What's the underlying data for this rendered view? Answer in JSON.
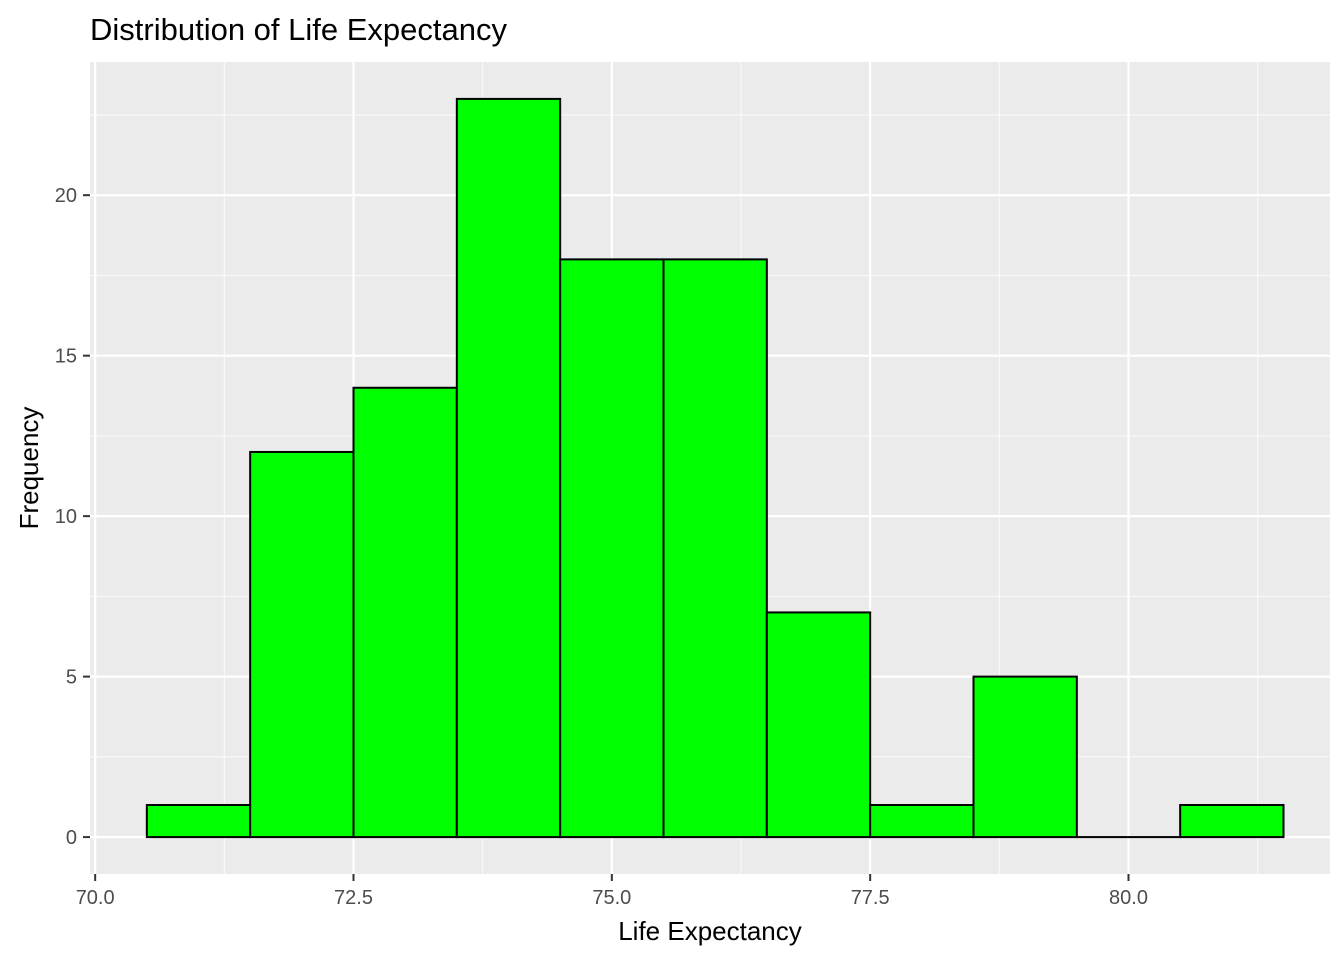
{
  "chart_data": {
    "type": "bar",
    "title": "Distribution of Life Expectancy",
    "xlabel": "Life Expectancy",
    "ylabel": "Frequency",
    "xlim": [
      69.95,
      81.95
    ],
    "ylim": [
      -1.15,
      24.15
    ],
    "x_ticks": [
      70.0,
      72.5,
      75.0,
      77.5,
      80.0
    ],
    "x_tick_labels": [
      "70.0",
      "72.5",
      "75.0",
      "77.5",
      "80.0"
    ],
    "y_ticks": [
      0,
      5,
      10,
      15,
      20
    ],
    "y_tick_labels": [
      "0",
      "5",
      "10",
      "15",
      "20"
    ],
    "bin_width": 1,
    "bins": [
      {
        "x0": 70.5,
        "x1": 71.5,
        "count": 1
      },
      {
        "x0": 71.5,
        "x1": 72.5,
        "count": 12
      },
      {
        "x0": 72.5,
        "x1": 73.5,
        "count": 14
      },
      {
        "x0": 73.5,
        "x1": 74.5,
        "count": 23
      },
      {
        "x0": 74.5,
        "x1": 75.5,
        "count": 18
      },
      {
        "x0": 75.5,
        "x1": 76.5,
        "count": 18
      },
      {
        "x0": 76.5,
        "x1": 77.5,
        "count": 7
      },
      {
        "x0": 77.5,
        "x1": 78.5,
        "count": 1
      },
      {
        "x0": 78.5,
        "x1": 79.5,
        "count": 5
      },
      {
        "x0": 79.5,
        "x1": 80.5,
        "count": 0
      },
      {
        "x0": 80.5,
        "x1": 81.5,
        "count": 1
      }
    ],
    "bar_fill": "#00ff00",
    "bar_outline": "#000000",
    "panel_background": "#ebebeb",
    "grid_color": "#ffffff",
    "grid": true,
    "legend": "none"
  }
}
